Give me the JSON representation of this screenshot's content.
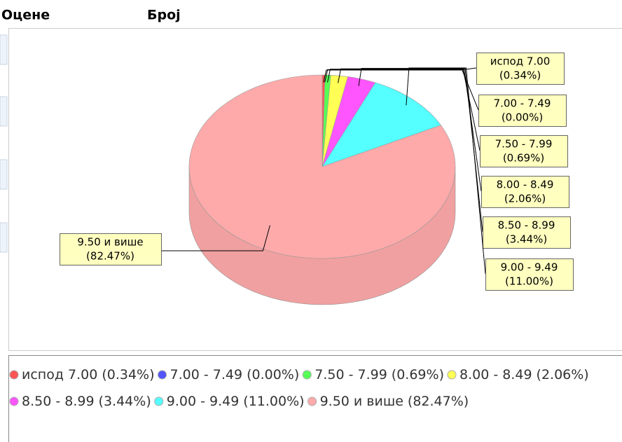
{
  "header": {
    "col1": "Оцене",
    "col2": "Број"
  },
  "chart_data": {
    "type": "pie3d",
    "categories": [
      "испод 7.00",
      "7.00 - 7.49",
      "7.50 - 7.99",
      "8.00 - 8.49",
      "8.50 - 8.99",
      "9.00 - 9.49",
      "9.50 и више"
    ],
    "values": [
      0.34,
      0,
      0.69,
      2.06,
      3.44,
      11.0,
      82.47
    ],
    "value_labels": [
      "(0.34%)",
      "(0.00%)",
      "(0.69%)",
      "(2.06%)",
      "(3.44%)",
      "(11.00%)",
      "(82.47%)"
    ],
    "colors": [
      "#ff5555",
      "#5555ff",
      "#55ff55",
      "#ffff55",
      "#ff55ff",
      "#55ffff",
      "#ffaaaa"
    ],
    "legend": "bottom"
  }
}
